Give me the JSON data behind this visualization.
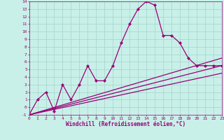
{
  "bg_color": "#c8f0e8",
  "grid_color": "#a8d8d0",
  "line_color": "#990077",
  "xlabel": "Windchill (Refroidissement éolien,°C)",
  "ylim": [
    -1,
    14
  ],
  "xlim": [
    0,
    23
  ],
  "yticks": [
    -1,
    0,
    1,
    2,
    3,
    4,
    5,
    6,
    7,
    8,
    9,
    10,
    11,
    12,
    13,
    14
  ],
  "xticks": [
    0,
    1,
    2,
    3,
    4,
    5,
    6,
    7,
    8,
    9,
    10,
    11,
    12,
    13,
    14,
    15,
    16,
    17,
    18,
    19,
    20,
    21,
    22,
    23
  ],
  "line1_x": [
    0,
    1,
    2,
    3,
    4,
    5,
    6,
    7,
    8,
    9,
    10,
    11,
    12,
    13,
    14,
    15,
    16,
    17,
    18,
    19,
    20,
    21,
    22,
    23
  ],
  "line1_y": [
    -1,
    1,
    2,
    -0.5,
    3,
    1,
    3,
    5.5,
    3.5,
    3.5,
    5.5,
    8.5,
    11,
    13,
    14,
    13.5,
    9.5,
    9.5,
    8.5,
    6.5,
    5.5,
    5.5,
    5.5,
    5.5
  ],
  "line2_x": [
    0,
    23
  ],
  "line2_y": [
    -1,
    5.5
  ],
  "line3_x": [
    0,
    23
  ],
  "line3_y": [
    -1,
    6.5
  ],
  "line4_x": [
    0,
    23
  ],
  "line4_y": [
    -1,
    4.5
  ],
  "markersize": 2.5,
  "linewidth": 0.9
}
